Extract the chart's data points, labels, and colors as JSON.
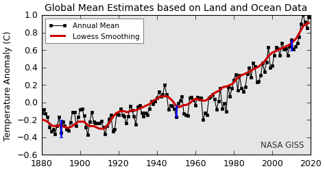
{
  "title": "Global Mean Estimates based on Land and Ocean Data",
  "ylabel": "Temperature Anomaly (C)",
  "xlabel": "",
  "watermark": "NASA GISS",
  "xlim": [
    1880,
    2020
  ],
  "ylim": [
    -0.6,
    1.0
  ],
  "yticks": [
    -0.6,
    -0.4,
    -0.2,
    0.0,
    0.2,
    0.4,
    0.6,
    0.8,
    1.0
  ],
  "xticks": [
    1880,
    1900,
    1920,
    1940,
    1960,
    1980,
    2000,
    2020
  ],
  "annual_color": "#000000",
  "smoothing_color": "#cc0000",
  "legend_annual": "Annual Mean",
  "legend_smooth": "Lowess Smoothing",
  "years": [
    1880,
    1881,
    1882,
    1883,
    1884,
    1885,
    1886,
    1887,
    1888,
    1889,
    1890,
    1891,
    1892,
    1893,
    1894,
    1895,
    1896,
    1897,
    1898,
    1899,
    1900,
    1901,
    1902,
    1903,
    1904,
    1905,
    1906,
    1907,
    1908,
    1909,
    1910,
    1911,
    1912,
    1913,
    1914,
    1915,
    1916,
    1917,
    1918,
    1919,
    1920,
    1921,
    1922,
    1923,
    1924,
    1925,
    1926,
    1927,
    1928,
    1929,
    1930,
    1931,
    1932,
    1933,
    1934,
    1935,
    1936,
    1937,
    1938,
    1939,
    1940,
    1941,
    1942,
    1943,
    1944,
    1945,
    1946,
    1947,
    1948,
    1949,
    1950,
    1951,
    1952,
    1953,
    1954,
    1955,
    1956,
    1957,
    1958,
    1959,
    1960,
    1961,
    1962,
    1963,
    1964,
    1965,
    1966,
    1967,
    1968,
    1969,
    1970,
    1971,
    1972,
    1973,
    1974,
    1975,
    1976,
    1977,
    1978,
    1979,
    1980,
    1981,
    1982,
    1983,
    1984,
    1985,
    1986,
    1987,
    1988,
    1989,
    1990,
    1991,
    1992,
    1993,
    1994,
    1995,
    1996,
    1997,
    1998,
    1999,
    2000,
    2001,
    2002,
    2003,
    2004,
    2005,
    2006,
    2007,
    2008,
    2009,
    2010,
    2011,
    2012,
    2013,
    2014,
    2015,
    2016,
    2017,
    2018,
    2019
  ],
  "anomaly": [
    -0.12,
    -0.08,
    -0.13,
    -0.17,
    -0.28,
    -0.33,
    -0.31,
    -0.36,
    -0.27,
    -0.17,
    -0.35,
    -0.22,
    -0.27,
    -0.31,
    -0.32,
    -0.23,
    -0.11,
    -0.11,
    -0.27,
    -0.17,
    -0.08,
    -0.07,
    -0.15,
    -0.28,
    -0.37,
    -0.22,
    -0.11,
    -0.22,
    -0.24,
    -0.24,
    -0.24,
    -0.21,
    -0.28,
    -0.36,
    -0.27,
    -0.19,
    -0.14,
    -0.33,
    -0.31,
    -0.13,
    -0.14,
    -0.07,
    -0.14,
    -0.16,
    -0.24,
    -0.16,
    -0.04,
    -0.09,
    -0.16,
    -0.25,
    -0.05,
    -0.03,
    -0.12,
    -0.16,
    -0.12,
    -0.14,
    -0.07,
    0.01,
    -0.02,
    0.01,
    0.05,
    0.12,
    0.07,
    0.09,
    0.2,
    0.09,
    -0.08,
    -0.03,
    -0.04,
    -0.07,
    -0.17,
    -0.01,
    0.02,
    0.07,
    -0.13,
    -0.14,
    -0.15,
    0.05,
    0.06,
    0.03,
    -0.03,
    0.06,
    0.04,
    0.05,
    -0.2,
    -0.12,
    -0.14,
    0.05,
    0.07,
    0.09,
    0.04,
    -0.08,
    0.01,
    0.16,
    -0.07,
    -0.01,
    -0.1,
    0.18,
    0.07,
    0.16,
    0.26,
    0.32,
    0.14,
    0.31,
    0.16,
    0.12,
    0.18,
    0.33,
    0.4,
    0.29,
    0.45,
    0.41,
    0.23,
    0.24,
    0.31,
    0.45,
    0.35,
    0.46,
    0.63,
    0.4,
    0.42,
    0.54,
    0.63,
    0.62,
    0.54,
    0.68,
    0.61,
    0.62,
    0.54,
    0.64,
    0.72,
    0.61,
    0.64,
    0.68,
    0.75,
    0.9,
    1.01,
    0.92,
    0.85,
    0.98
  ],
  "smooth": [
    -0.2,
    -0.2,
    -0.21,
    -0.22,
    -0.24,
    -0.26,
    -0.27,
    -0.27,
    -0.27,
    -0.26,
    -0.27,
    -0.27,
    -0.28,
    -0.29,
    -0.29,
    -0.28,
    -0.27,
    -0.25,
    -0.24,
    -0.22,
    -0.22,
    -0.22,
    -0.22,
    -0.24,
    -0.26,
    -0.27,
    -0.27,
    -0.27,
    -0.28,
    -0.29,
    -0.3,
    -0.3,
    -0.3,
    -0.29,
    -0.27,
    -0.24,
    -0.2,
    -0.17,
    -0.14,
    -0.12,
    -0.11,
    -0.1,
    -0.1,
    -0.1,
    -0.11,
    -0.11,
    -0.1,
    -0.09,
    -0.09,
    -0.09,
    -0.08,
    -0.07,
    -0.06,
    -0.05,
    -0.04,
    -0.03,
    -0.02,
    0.0,
    0.02,
    0.03,
    0.04,
    0.06,
    0.07,
    0.07,
    0.07,
    0.07,
    0.06,
    0.04,
    0.02,
    -0.01,
    -0.04,
    -0.05,
    -0.05,
    -0.04,
    -0.03,
    -0.03,
    -0.02,
    -0.01,
    0.01,
    0.03,
    0.04,
    0.04,
    0.03,
    0.03,
    0.02,
    0.02,
    0.03,
    0.05,
    0.07,
    0.09,
    0.11,
    0.12,
    0.13,
    0.15,
    0.17,
    0.18,
    0.18,
    0.19,
    0.2,
    0.21,
    0.23,
    0.26,
    0.28,
    0.3,
    0.31,
    0.32,
    0.33,
    0.34,
    0.35,
    0.36,
    0.38,
    0.39,
    0.4,
    0.41,
    0.43,
    0.45,
    0.47,
    0.5,
    0.53,
    0.55,
    0.57,
    0.58,
    0.59,
    0.6,
    0.61,
    0.62,
    0.63,
    0.64,
    0.65,
    0.66,
    0.68,
    0.7,
    0.72,
    0.75,
    0.79,
    0.83,
    0.87,
    0.89,
    0.9,
    0.91
  ],
  "errbar_years": [
    1890,
    1950,
    2010
  ],
  "errbar_vals": [
    -0.3,
    -0.1,
    0.65
  ],
  "errbar_errs": [
    0.1,
    0.07,
    0.06
  ],
  "fig_color": "#ffffff",
  "axes_color": "#e5e5e5",
  "title_fontsize": 10,
  "axis_fontsize": 9,
  "tick_fontsize": 9
}
